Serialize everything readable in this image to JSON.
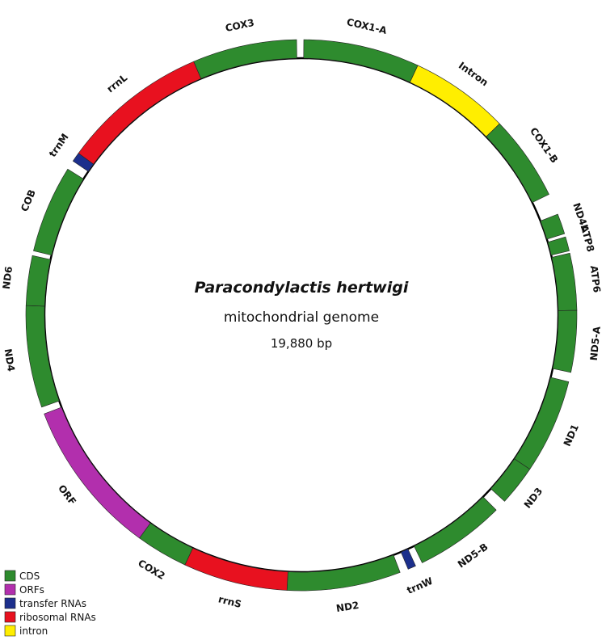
{
  "genome": {
    "title": "Paracondylactis hertwigi",
    "subtitle": "mitochondrial genome",
    "length": "19,880 bp"
  },
  "colors": {
    "CDS": "#2e8b2e",
    "ORF": "#b22fad",
    "tRNA": "#1c2f8c",
    "rRNA": "#e8111f",
    "intron": "#ffee00"
  },
  "features": [
    {
      "name": "COX1-A",
      "type": "CDS",
      "start": 0.5,
      "end": 25
    },
    {
      "name": "Intron",
      "type": "intron",
      "start": 25,
      "end": 46
    },
    {
      "name": "COX1-B",
      "type": "CDS",
      "start": 46,
      "end": 64
    },
    {
      "name": "ND4L",
      "type": "CDS",
      "start": 68.5,
      "end": 72.8
    },
    {
      "name": "ATP8",
      "type": "CDS",
      "start": 73.5,
      "end": 76.5
    },
    {
      "name": "ATP6",
      "type": "CDS",
      "start": 77,
      "end": 89
    },
    {
      "name": "ND5-A",
      "type": "CDS",
      "start": 89,
      "end": 102
    },
    {
      "name": "ND1",
      "type": "CDS",
      "start": 104,
      "end": 124
    },
    {
      "name": "ND3",
      "type": "CDS",
      "start": 124,
      "end": 132.5
    },
    {
      "name": "ND5-B",
      "type": "CDS",
      "start": 135,
      "end": 154
    },
    {
      "name": "trnW",
      "type": "tRNA",
      "start": 155.5,
      "end": 157.2
    },
    {
      "name": "ND2",
      "type": "CDS",
      "start": 159,
      "end": 183
    },
    {
      "name": "rrnS",
      "type": "rRNA",
      "start": 183,
      "end": 205
    },
    {
      "name": "COX2",
      "type": "CDS",
      "start": 205,
      "end": 216
    },
    {
      "name": "ORF",
      "type": "ORF",
      "start": 216,
      "end": 249
    },
    {
      "name": "ND4",
      "type": "CDS",
      "start": 250.5,
      "end": 272
    },
    {
      "name": "ND6",
      "type": "CDS",
      "start": 272,
      "end": 282.5
    },
    {
      "name": "COB",
      "type": "CDS",
      "start": 283.5,
      "end": 302
    },
    {
      "name": "trnM",
      "type": "tRNA",
      "start": 304,
      "end": 306
    },
    {
      "name": "rrnL",
      "type": "rRNA",
      "start": 306,
      "end": 337
    },
    {
      "name": "COX3",
      "type": "CDS",
      "start": 337,
      "end": 359
    }
  ],
  "legend": [
    {
      "label": "CDS",
      "color": "#2e8b2e"
    },
    {
      "label": "ORFs",
      "color": "#b22fad"
    },
    {
      "label": "transfer RNAs",
      "color": "#1c2f8c"
    },
    {
      "label": "ribosomal RNAs",
      "color": "#e8111f"
    },
    {
      "label": "intron",
      "color": "#ffee00"
    }
  ]
}
